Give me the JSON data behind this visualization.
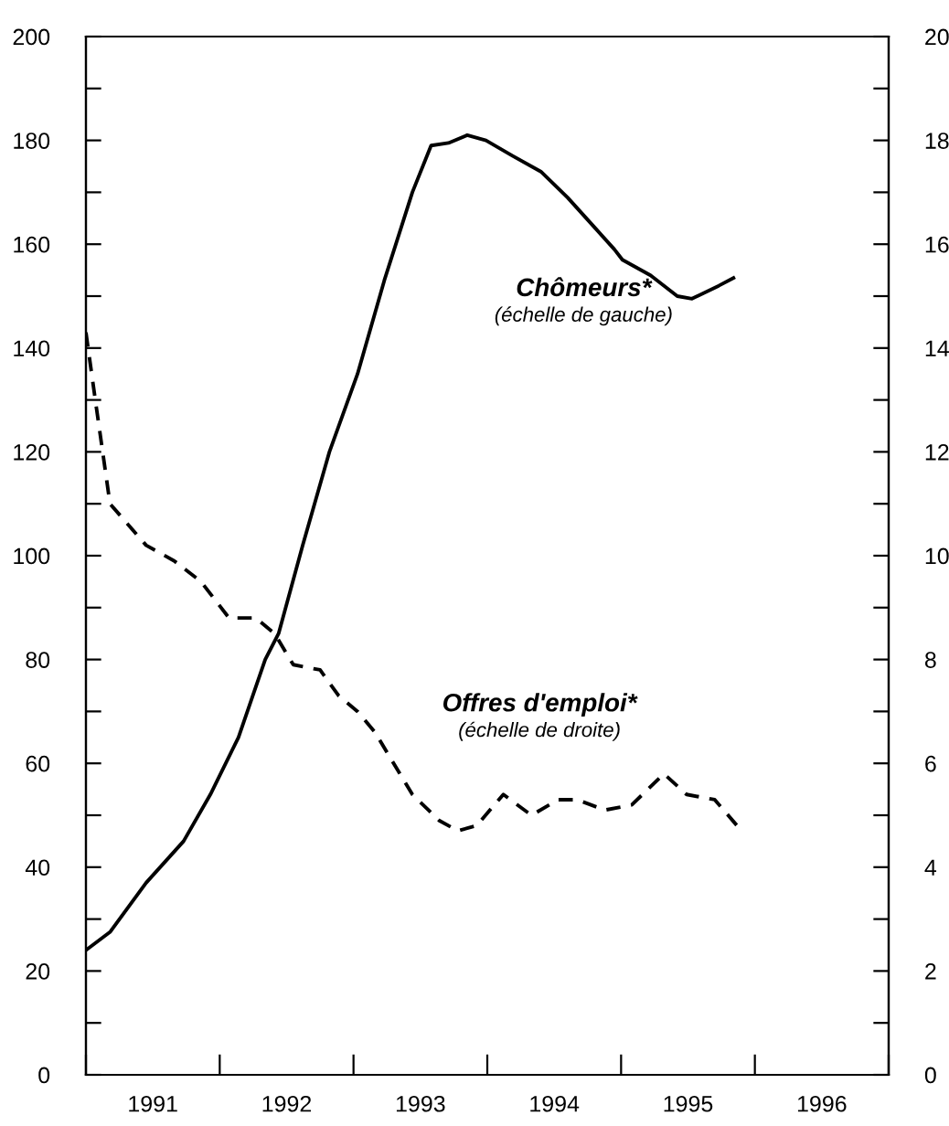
{
  "chart_data": {
    "type": "line",
    "marker": "none",
    "grid": false,
    "legend": false,
    "annotations": [
      "(échelle de gauche)",
      "(échelle de droite)"
    ],
    "xlim": [
      1991.0,
      1997.0
    ],
    "xticks": [
      {
        "value": 1991,
        "label": null
      },
      {
        "value": 1991.5,
        "label": "1991"
      },
      {
        "value": 1992,
        "label": null
      },
      {
        "value": 1992.5,
        "label": "1992"
      },
      {
        "value": 1993,
        "label": null
      },
      {
        "value": 1993.5,
        "label": "1993"
      },
      {
        "value": 1994,
        "label": null
      },
      {
        "value": 1994.5,
        "label": "1994"
      },
      {
        "value": 1995,
        "label": null
      },
      {
        "value": 1995.5,
        "label": "1995"
      },
      {
        "value": 1996,
        "label": null
      },
      {
        "value": 1996.5,
        "label": "1996"
      },
      {
        "value": 1997,
        "label": null
      }
    ],
    "ylim": [
      0,
      200
    ],
    "yticks": [
      0,
      {
        "value": 10,
        "label": null
      },
      20,
      {
        "value": 30,
        "label": null
      },
      40,
      {
        "value": 50,
        "label": null
      },
      60,
      {
        "value": 70,
        "label": null
      },
      80,
      {
        "value": 90,
        "label": null
      },
      100,
      {
        "value": 110,
        "label": null
      },
      120,
      {
        "value": 130,
        "label": null
      },
      140,
      {
        "value": 150,
        "label": null
      },
      160,
      {
        "value": 170,
        "label": null
      },
      180,
      {
        "value": 190,
        "label": null
      },
      200
    ],
    "y2lim": [
      0,
      20
    ],
    "y2ticks": [
      0,
      {
        "value": 1,
        "label": null
      },
      2,
      {
        "value": 3,
        "label": null
      },
      4,
      {
        "value": 5,
        "label": null
      },
      6,
      {
        "value": 7,
        "label": null
      },
      8,
      {
        "value": 9,
        "label": null
      },
      10,
      {
        "value": 11,
        "label": null
      },
      12,
      {
        "value": 13,
        "label": null
      },
      14,
      {
        "value": 15,
        "label": null
      },
      16,
      {
        "value": 17,
        "label": null
      },
      18,
      {
        "value": 19,
        "label": null
      },
      20
    ],
    "series": [
      {
        "name": "Chômeurs*",
        "color": "#000000",
        "line_style": "solid",
        "x": [
          1991.0,
          1991.18,
          1991.45,
          1991.73,
          1991.93,
          1992.14,
          1992.34,
          1992.44,
          1992.62,
          1992.82,
          1993.03,
          1993.23,
          1993.44,
          1993.58,
          1993.71,
          1993.85,
          1993.99,
          1994.19,
          1994.4,
          1994.6,
          1994.81,
          1994.95,
          1995.01,
          1995.22,
          1995.42,
          1995.53,
          1995.73,
          1995.84
        ],
        "values": [
          24,
          27.5,
          37,
          45,
          54,
          65,
          80,
          85,
          102,
          120,
          135,
          153,
          170,
          179,
          179.5,
          181,
          180,
          177,
          174,
          169,
          163,
          159,
          157,
          154,
          150,
          149.5,
          152,
          153.5
        ]
      },
      {
        "name": "Offres d'emploi*",
        "color": "#000000",
        "line_style": "dashed",
        "axis": "y2",
        "x": [
          1991.0,
          1991.07,
          1991.18,
          1991.45,
          1991.66,
          1991.86,
          1992.07,
          1992.27,
          1992.41,
          1992.55,
          1992.75,
          1992.89,
          1993.03,
          1993.16,
          1993.3,
          1993.44,
          1993.64,
          1993.78,
          1993.92,
          1994.12,
          1994.33,
          1994.53,
          1994.67,
          1994.88,
          1995.08,
          1995.32,
          1995.49,
          1995.7,
          1995.9
        ],
        "values": [
          14.3,
          13.0,
          11.0,
          10.2,
          9.9,
          9.5,
          8.8,
          8.8,
          8.5,
          7.9,
          7.8,
          7.3,
          7.0,
          6.6,
          6.0,
          5.4,
          4.9,
          4.7,
          4.8,
          5.4,
          5.0,
          5.3,
          5.3,
          5.1,
          5.2,
          5.8,
          5.4,
          5.3,
          4.7
        ]
      }
    ]
  }
}
